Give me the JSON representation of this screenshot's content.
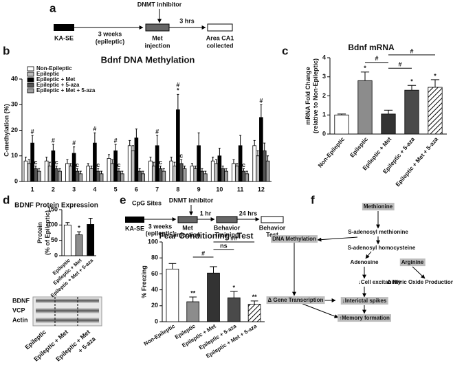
{
  "panel_labels": [
    "a",
    "b",
    "c",
    "d",
    "e",
    "f"
  ],
  "panel_a": {
    "inhibitor": "DNMT inhibitor",
    "start": "KA-SE",
    "interval": [
      "3 weeks",
      "(epileptic)"
    ],
    "treatment": [
      "Met",
      "injection"
    ],
    "delay": "3 hrs",
    "end": [
      "Area CA1",
      "collected"
    ]
  },
  "panel_e_timeline": {
    "inhibitor": "DNMT inhibitor",
    "start": "KA-SE",
    "interval": [
      "3 weeks",
      "(epileptic)"
    ],
    "treatment": [
      "Met",
      "injection"
    ],
    "delay1": "1 hr",
    "training": [
      "Behavior",
      "Training"
    ],
    "delay2": "24 hrs",
    "test": [
      "Behavior",
      "Test"
    ]
  },
  "panel_d_blot": {
    "rows": [
      "BDNF",
      "VCP",
      "Actin"
    ],
    "lanes": [
      [
        "Epileptic"
      ],
      [
        "Epileptic + Met"
      ],
      [
        "Epileptic + Met",
        "+ 5-aza"
      ]
    ]
  },
  "pathway": {
    "nodes": [
      {
        "label": "Methionine",
        "highlight": true
      },
      {
        "label": "S-adenosyl methionine",
        "highlight": false
      },
      {
        "label": "DNA Methylation",
        "highlight": true
      },
      {
        "label": "S-adenosyl homocysteine",
        "highlight": false
      },
      {
        "label": "Adenosine",
        "highlight": false
      },
      {
        "label": "Arginine",
        "highlight": true
      },
      {
        "label": "↓Cell excitability",
        "highlight": false
      },
      {
        "label": "Δ Nitric Oxide Production",
        "highlight": false
      },
      {
        "label": "Δ Gene Transcription",
        "highlight": true
      },
      {
        "label": "↓Interictal spikes",
        "highlight": true
      },
      {
        "label": "↑Memory formation",
        "highlight": true
      }
    ]
  },
  "chart_data": [
    {
      "type": "grouped_bar",
      "title": "Bdnf DNA Methylation",
      "x_label": "CpG Sites",
      "y_label": [
        "C-methylation (%)"
      ],
      "categories": [
        "1",
        "2",
        "3",
        "4",
        "5",
        "6",
        "7",
        "8",
        "9",
        "10",
        "11",
        "12"
      ],
      "series": [
        {
          "name": "Non-Epileptic",
          "color": "#ffffff",
          "values": [
            8,
            8,
            7,
            6,
            9,
            14,
            8,
            8,
            6,
            8,
            7,
            14
          ],
          "errors": [
            1.5,
            1.5,
            1.5,
            1,
            1.5,
            2,
            1.5,
            1.5,
            1,
            1.5,
            1.5,
            2
          ]
        },
        {
          "name": "Epileptic",
          "color": "#bdbdbd",
          "values": [
            7,
            6,
            6,
            5,
            7,
            12,
            6,
            6,
            5,
            7,
            6,
            10
          ],
          "errors": [
            1.5,
            1.5,
            1,
            1,
            1.5,
            2,
            1.5,
            1.5,
            1,
            1.5,
            1,
            2
          ]
        },
        {
          "name": "Epileptic + Met",
          "color": "#000000",
          "values": [
            15,
            12,
            11,
            15,
            12,
            17,
            14,
            28,
            14,
            10,
            14,
            25
          ],
          "errors": [
            3,
            2.5,
            2.5,
            4,
            2.5,
            3.5,
            4,
            6,
            5,
            3,
            4,
            5
          ]
        },
        {
          "name": "Epileptic + 5-aza",
          "color": "#555555",
          "values": [
            5,
            5,
            4,
            4,
            4,
            4,
            5,
            7,
            4,
            5,
            4,
            12
          ],
          "errors": [
            1,
            1,
            1,
            1,
            1,
            1,
            1,
            1.5,
            1,
            1,
            1,
            3
          ]
        },
        {
          "name": "Epileptic + Met + 5-aza",
          "color": "#9e9e9e",
          "values": [
            4,
            4,
            3,
            3,
            3,
            3,
            4,
            5,
            3,
            4,
            3,
            8
          ],
          "errors": [
            1,
            1,
            1,
            1,
            1,
            1,
            1,
            1,
            1,
            1,
            1,
            2
          ]
        }
      ],
      "annotations": [
        {
          "text": "#",
          "index": 0,
          "series": 2
        },
        {
          "text": "#",
          "index": 1,
          "series": 2
        },
        {
          "text": "#",
          "index": 2,
          "series": 2
        },
        {
          "text": "#",
          "index": 3,
          "series": 2
        },
        {
          "text": "#",
          "index": 4,
          "series": 2
        },
        {
          "text": "#",
          "index": 6,
          "series": 2
        },
        {
          "text": "*",
          "index": 7,
          "series": 2
        },
        {
          "text": "#",
          "index": 7,
          "series": 2
        },
        {
          "text": "#",
          "index": 11,
          "series": 2
        },
        {
          "text": "c",
          "index": 0,
          "series": 3
        },
        {
          "text": "c",
          "index": 1,
          "series": 3
        },
        {
          "text": "c",
          "index": 2,
          "series": 3
        },
        {
          "text": "c",
          "index": 3,
          "series": 3
        },
        {
          "text": "c",
          "index": 4,
          "series": 3
        },
        {
          "text": "c",
          "index": 6,
          "series": 3
        },
        {
          "text": "c",
          "index": 7,
          "series": 3
        },
        {
          "text": "c",
          "index": 10,
          "series": 3
        }
      ],
      "ylim": [
        0,
        40
      ],
      "yticks": [
        0,
        10,
        20,
        30,
        40
      ]
    },
    {
      "type": "bar",
      "title": "Bdnf mRNA",
      "y_label": [
        "mRNA Fold Change",
        "(relative to Non-Epileptic)"
      ],
      "categories": [
        "Non-Epileptic",
        "Epileptic",
        "Epileptic + Met",
        "Epileptic + 5-aza",
        "Epileptic + Met + 5-aza"
      ],
      "values": [
        1.0,
        2.8,
        1.05,
        2.3,
        2.45
      ],
      "errors": [
        0.05,
        0.45,
        0.2,
        0.25,
        0.4
      ],
      "colors": [
        "#ffffff",
        "#8c8c8c",
        "#333333",
        "#4a4a4a",
        "hatch"
      ],
      "annotations": [
        {
          "text": "*",
          "index": 1
        },
        {
          "text": "*",
          "index": 3
        },
        {
          "text": "*",
          "index": 4
        }
      ],
      "brackets": [
        {
          "text": "#",
          "from": 1,
          "to": 2
        },
        {
          "text": "#",
          "from": 2,
          "to": 3
        },
        {
          "text": "#",
          "from": 2,
          "to": 4
        }
      ],
      "ylim": [
        0,
        4
      ],
      "yticks": [
        0,
        1,
        2,
        3,
        4
      ]
    },
    {
      "type": "bar",
      "title": "BDNF Protein Expression",
      "y_label": [
        "Protein",
        "(% of Epileptic)"
      ],
      "categories": [
        "Epileptic",
        "Epileptic + Met",
        "Epileptic + Met + 5-aza"
      ],
      "values": [
        100,
        68,
        102
      ],
      "errors": [
        8,
        10,
        20
      ],
      "colors": [
        "#ffffff",
        "#8c8c8c",
        "#000000"
      ],
      "annotations": [
        {
          "text": "*",
          "index": 1
        }
      ],
      "ylim": [
        0,
        150
      ],
      "yticks": [
        0,
        50,
        100,
        150
      ]
    },
    {
      "type": "bar",
      "title": "Fear Conditioning - Test",
      "y_label": [
        "% Freezing"
      ],
      "categories": [
        "Non-Epileptic",
        "Epileptic",
        "Epileptic + Met",
        "Epileptic + 5-aza",
        "Epileptic + Met + 5-aza"
      ],
      "values": [
        66,
        25,
        61,
        30,
        22
      ],
      "errors": [
        7,
        6,
        8,
        8,
        4
      ],
      "colors": [
        "#ffffff",
        "#8c8c8c",
        "#333333",
        "#4a4a4a",
        "hatch"
      ],
      "annotations": [
        {
          "text": "**",
          "index": 1
        },
        {
          "text": "*",
          "index": 3
        },
        {
          "text": "**",
          "index": 4
        }
      ],
      "brackets": [
        {
          "text": "#",
          "from": 1,
          "to": 2
        },
        {
          "text": "ns",
          "from": 2,
          "to": 3
        },
        {
          "text": "##",
          "from": 2,
          "to": 4
        }
      ],
      "ylim": [
        0,
        100
      ],
      "yticks": [
        0,
        20,
        40,
        60,
        80,
        100
      ]
    }
  ]
}
